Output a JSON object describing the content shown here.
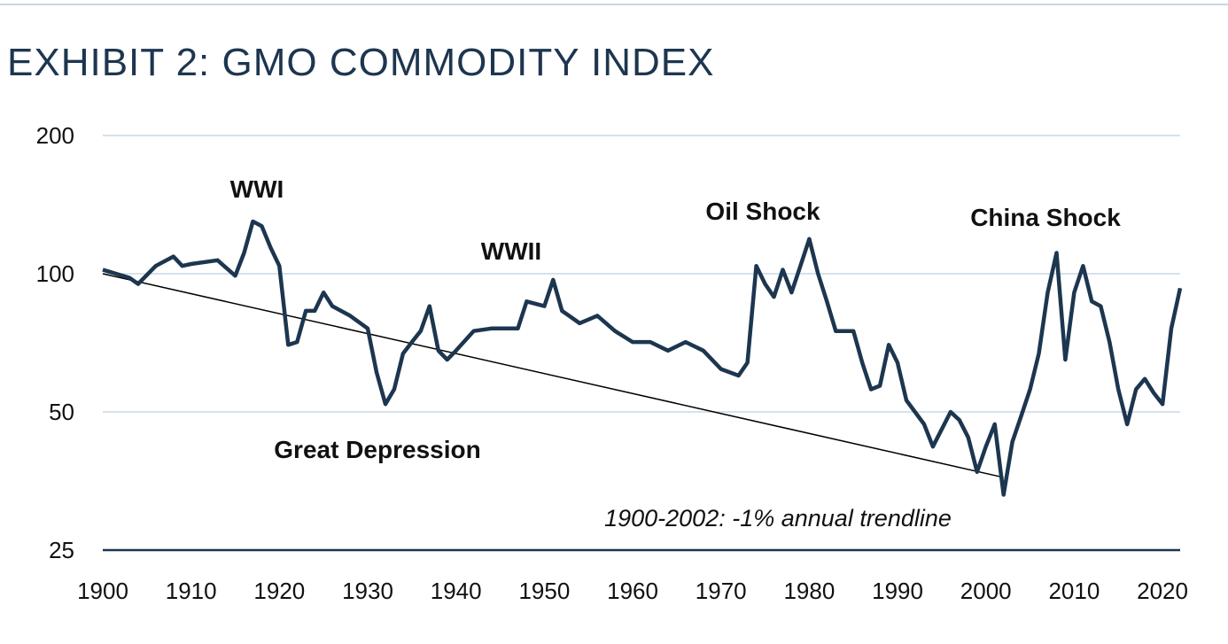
{
  "chart_data": {
    "type": "line",
    "title": "EXHIBIT 2: GMO COMMODITY INDEX",
    "x": [
      1900,
      1903,
      1904,
      1906,
      1908,
      1909,
      1910,
      1913,
      1915,
      1916,
      1917,
      1918,
      1919,
      1920,
      1921,
      1922,
      1923,
      1924,
      1925,
      1926,
      1928,
      1930,
      1931,
      1932,
      1933,
      1934,
      1935,
      1936,
      1937,
      1938,
      1939,
      1940,
      1942,
      1944,
      1947,
      1948,
      1950,
      1951,
      1952,
      1954,
      1956,
      1958,
      1960,
      1962,
      1964,
      1966,
      1968,
      1970,
      1972,
      1973,
      1974,
      1975,
      1976,
      1977,
      1978,
      1979,
      1980,
      1981,
      1982,
      1983,
      1985,
      1986,
      1987,
      1988,
      1989,
      1990,
      1991,
      1993,
      1994,
      1996,
      1997,
      1998,
      1999,
      2000,
      2001,
      2002,
      2003,
      2004,
      2005,
      2006,
      2007,
      2008,
      2009,
      2010,
      2011,
      2012,
      2013,
      2014,
      2015,
      2016,
      2017,
      2018,
      2019,
      2020,
      2021,
      2022
    ],
    "values": [
      102,
      98,
      95,
      104,
      109,
      104,
      105,
      107,
      99,
      111,
      130,
      127,
      114,
      104,
      70,
      71,
      83,
      83,
      91,
      85,
      81,
      76,
      61,
      52,
      56,
      67,
      71,
      75,
      85,
      68,
      65,
      68,
      75,
      76,
      76,
      87,
      85,
      97,
      83,
      78,
      81,
      75,
      71,
      71,
      68,
      71,
      68,
      62,
      60,
      64,
      104,
      95,
      89,
      102,
      91,
      104,
      119,
      100,
      87,
      75,
      75,
      64,
      56,
      57,
      70,
      64,
      53,
      47,
      42,
      50,
      48,
      44,
      37,
      42,
      47,
      33,
      43,
      49,
      56,
      67,
      91,
      111,
      65,
      91,
      104,
      87,
      85,
      71,
      56,
      47,
      56,
      59,
      55,
      52,
      76,
      93
    ],
    "color": "#1d3650",
    "trendline": {
      "x": [
        1900,
        2002
      ],
      "values": [
        100,
        36
      ],
      "color": "#000000"
    },
    "xlim": [
      1900,
      2022
    ],
    "xticks": [
      1900,
      1910,
      1920,
      1930,
      1940,
      1950,
      1960,
      1970,
      1980,
      1990,
      2000,
      2010,
      2020
    ],
    "ylim": [
      25,
      200
    ],
    "yticks": [
      25,
      50,
      100,
      200
    ],
    "log_scale": true,
    "grid": true,
    "annotations": [
      "WWI",
      "WWII",
      "Oil Shock",
      "Great Depression",
      "China Shock",
      "1900-2002: -1% annual trendline"
    ]
  }
}
